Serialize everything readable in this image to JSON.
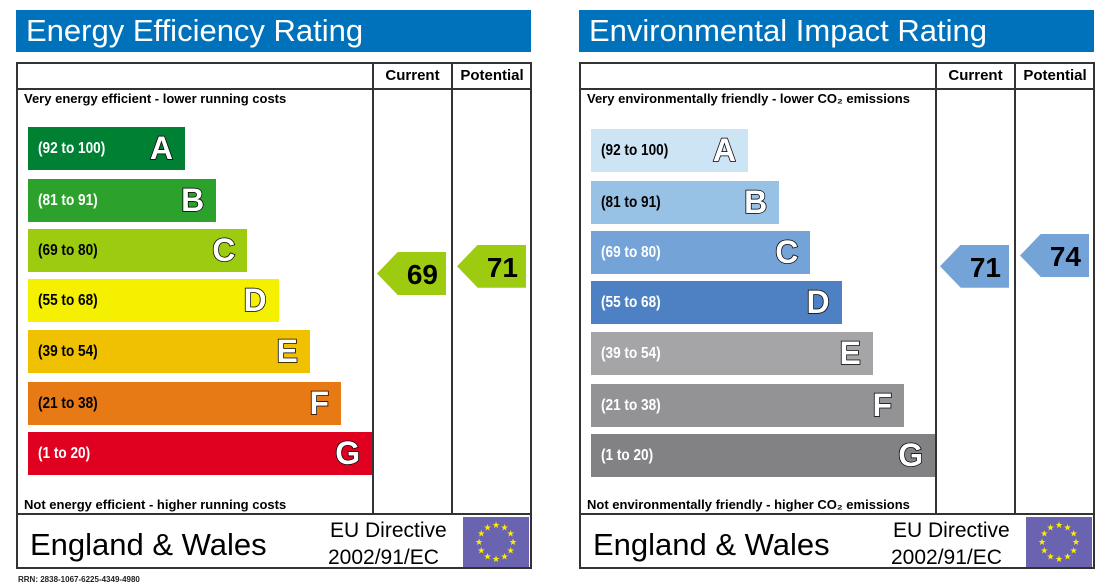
{
  "chart_data": [
    {
      "type": "bar",
      "title": "Energy Efficiency Rating",
      "columns": [
        "Current",
        "Potential"
      ],
      "top_note": "Very energy efficient - lower running costs",
      "bottom_note": "Not energy efficient - higher running costs",
      "bands": [
        {
          "range": "(92 to 100)",
          "letter": "A",
          "color": "#008033"
        },
        {
          "range": "(81 to 91)",
          "letter": "B",
          "color": "#2ca12c"
        },
        {
          "range": "(69 to 80)",
          "letter": "C",
          "color": "#9dcb0f"
        },
        {
          "range": "(55 to 68)",
          "letter": "D",
          "color": "#f5ef00"
        },
        {
          "range": "(39 to 54)",
          "letter": "E",
          "color": "#efc100"
        },
        {
          "range": "(21 to 38)",
          "letter": "F",
          "color": "#e87a16"
        },
        {
          "range": "(1 to 20)",
          "letter": "G",
          "color": "#e0001f"
        }
      ],
      "current": {
        "value": 69,
        "band": "C"
      },
      "potential": {
        "value": 71,
        "band": "C"
      },
      "footer": {
        "country": "England & Wales",
        "directive_line1": "EU Directive",
        "directive_line2": "2002/91/EC"
      }
    },
    {
      "type": "bar",
      "title": "Environmental Impact Rating",
      "columns": [
        "Current",
        "Potential"
      ],
      "top_note": "Very environmentally friendly - lower CO₂ emissions",
      "bottom_note": "Not environmentally friendly - higher CO₂ emissions",
      "bands": [
        {
          "range": "(92 to 100)",
          "letter": "A",
          "color": "#cde4f5"
        },
        {
          "range": "(81 to 91)",
          "letter": "B",
          "color": "#98c1e6"
        },
        {
          "range": "(69 to 80)",
          "letter": "C",
          "color": "#73a3d7"
        },
        {
          "range": "(55 to 68)",
          "letter": "D",
          "color": "#4e81c3"
        },
        {
          "range": "(39 to 54)",
          "letter": "E",
          "color": "#a5a5a8"
        },
        {
          "range": "(21 to 38)",
          "letter": "F",
          "color": "#939396"
        },
        {
          "range": "(1 to 20)",
          "letter": "G",
          "color": "#828285"
        }
      ],
      "current": {
        "value": 71,
        "band": "C"
      },
      "potential": {
        "value": 74,
        "band": "C"
      },
      "footer": {
        "country": "England & Wales",
        "directive_line1": "EU Directive",
        "directive_line2": "2002/91/EC"
      }
    }
  ],
  "rrn": "RRN: 2838-1067-6225-4349-4980",
  "icons": {
    "flag": "eu-flag-icon"
  }
}
